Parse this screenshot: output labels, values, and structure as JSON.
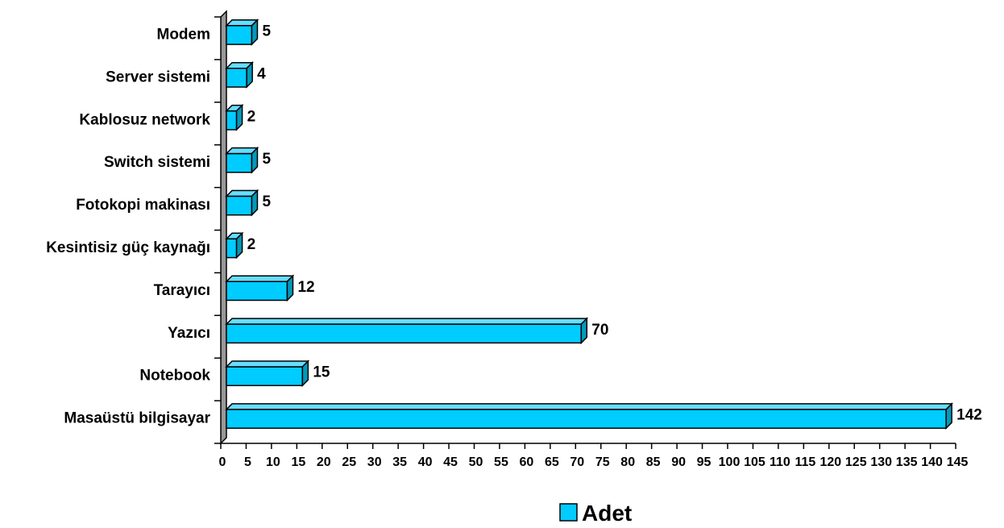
{
  "chart_data": {
    "type": "bar",
    "orientation": "horizontal",
    "style": "3d",
    "categories": [
      "Masaüstü bilgisayar",
      "Notebook",
      "Yazıcı",
      "Tarayıcı",
      "Kesintisiz güç kaynağı",
      "Fotokopi makinası",
      "Switch sistemi",
      "Kablosuz network",
      "Server sistemi",
      "Modem"
    ],
    "series": [
      {
        "name": "Adet",
        "values": [
          142,
          15,
          70,
          12,
          2,
          5,
          5,
          2,
          4,
          5
        ]
      }
    ],
    "x_ticks": [
      "0",
      "5",
      "10",
      "15",
      "20",
      "25",
      "30",
      "35",
      "40",
      "45",
      "50",
      "55",
      "60",
      "65",
      "70",
      "75",
      "80",
      "85",
      "90",
      "95",
      "100",
      "105",
      "110",
      "115",
      "120",
      "125",
      "130",
      "135",
      "140",
      "145"
    ],
    "xlim": [
      0,
      145
    ],
    "grid": false,
    "legend_position": "bottom-center",
    "colors": {
      "bar_face": "#00CCFF",
      "bar_top": "#66DDFF",
      "bar_side": "#0099BB",
      "wall": "#999999",
      "edge": "#000000"
    }
  }
}
